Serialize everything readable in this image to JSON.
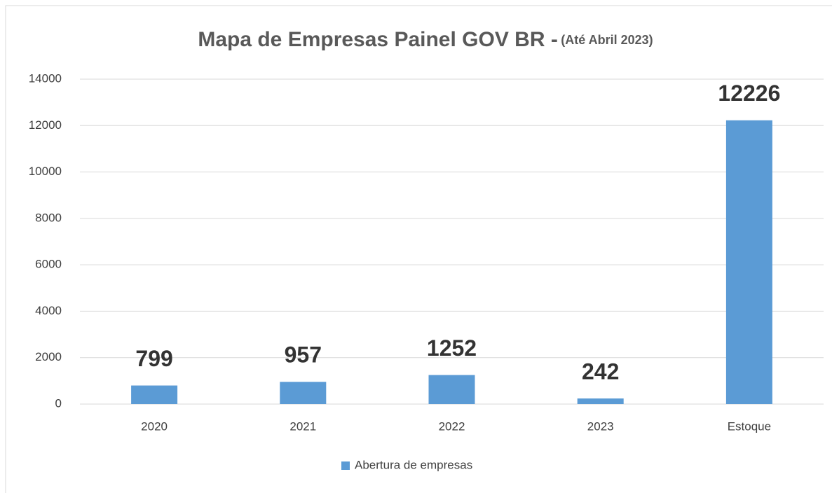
{
  "chart_data": {
    "type": "bar",
    "title": "Mapa de Empresas Painel GOV BR -",
    "subtitle": "(Até Abril 2023)",
    "categories": [
      "2020",
      "2021",
      "2022",
      "2023",
      "Estoque"
    ],
    "series": [
      {
        "name": "Abertura de empresas",
        "color": "#5b9bd5",
        "values": [
          799,
          957,
          1252,
          242,
          12226
        ]
      }
    ],
    "ylim": [
      0,
      14000
    ],
    "yticks": [
      0,
      2000,
      4000,
      6000,
      8000,
      10000,
      12000,
      14000
    ],
    "grid": true,
    "legend": "bottom"
  }
}
